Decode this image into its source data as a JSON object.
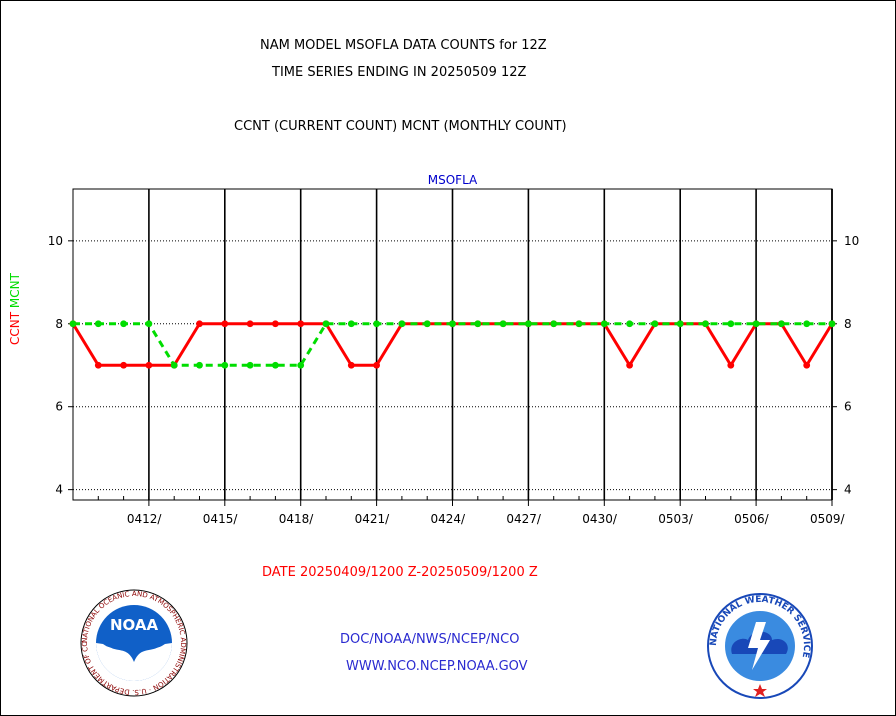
{
  "header": {
    "title_line1": "NAM MODEL MSOFLA DATA COUNTS for 12Z",
    "title_line2": "TIME SERIES ENDING IN 20250509 12Z",
    "subtitle": "CCNT (CURRENT COUNT) MCNT (MONTHLY COUNT)"
  },
  "footer": {
    "date_range": "DATE 20250409/1200 Z-20250509/1200 Z",
    "org_path": "DOC/NOAA/NWS/NCEP/NCO",
    "website": "WWW.NCO.NCEP.NOAA.GOV",
    "noaa_logo_text": "NOAA",
    "noaa_seal_text": "NATIONAL OCEANIC AND ATMOSPHERIC ADMINISTRATION · U.S. DEPARTMENT OF COMMERCE",
    "nws_seal_text": "NATIONAL WEATHER SERVICE"
  },
  "colors": {
    "ccnt": "#ff0000",
    "mcnt": "#00dd00",
    "station_label": "#0000cc",
    "footer_blue": "#2a2ad0",
    "date_red": "#ff0000"
  },
  "chart_data": {
    "type": "line",
    "title": "MSOFLA",
    "ylabel_parts": [
      {
        "text": "CCNT",
        "color": "#ff0000"
      },
      {
        "text": "MCNT",
        "color": "#00dd00"
      }
    ],
    "x_unit": "day",
    "x_start": "2025-04-09",
    "x": [
      "0409",
      "0410",
      "0411",
      "0412",
      "0413",
      "0414",
      "0415",
      "0416",
      "0417",
      "0418",
      "0419",
      "0420",
      "0421",
      "0422",
      "0423",
      "0424",
      "0425",
      "0426",
      "0427",
      "0428",
      "0429",
      "0430",
      "0501",
      "0502",
      "0503",
      "0504",
      "0505",
      "0506",
      "0507",
      "0508",
      "0509"
    ],
    "xtick_labels": [
      "0412/",
      "0415/",
      "0418/",
      "0421/",
      "0424/",
      "0427/",
      "0430/",
      "0503/",
      "0506/",
      "0509/"
    ],
    "xtick_dates": [
      "0412",
      "0415",
      "0418",
      "0421",
      "0424",
      "0427",
      "0430",
      "0503",
      "0506",
      "0509"
    ],
    "ylim": [
      3.75,
      11.25
    ],
    "yticks": [
      4,
      6,
      8,
      10
    ],
    "grid": true,
    "series": [
      {
        "name": "CCNT",
        "color": "#ff0000",
        "style": "solid",
        "values": [
          8,
          7,
          7,
          7,
          7,
          8,
          8,
          8,
          8,
          8,
          8,
          7,
          7,
          8,
          8,
          8,
          8,
          8,
          8,
          8,
          8,
          8,
          7,
          8,
          8,
          8,
          7,
          8,
          8,
          7,
          8
        ]
      },
      {
        "name": "MCNT",
        "color": "#00dd00",
        "style": "dashed",
        "values": [
          8,
          8,
          8,
          8,
          7,
          7,
          7,
          7,
          7,
          7,
          8,
          8,
          8,
          8,
          8,
          8,
          8,
          8,
          8,
          8,
          8,
          8,
          8,
          8,
          8,
          8,
          8,
          8,
          8,
          8,
          8
        ]
      }
    ]
  }
}
